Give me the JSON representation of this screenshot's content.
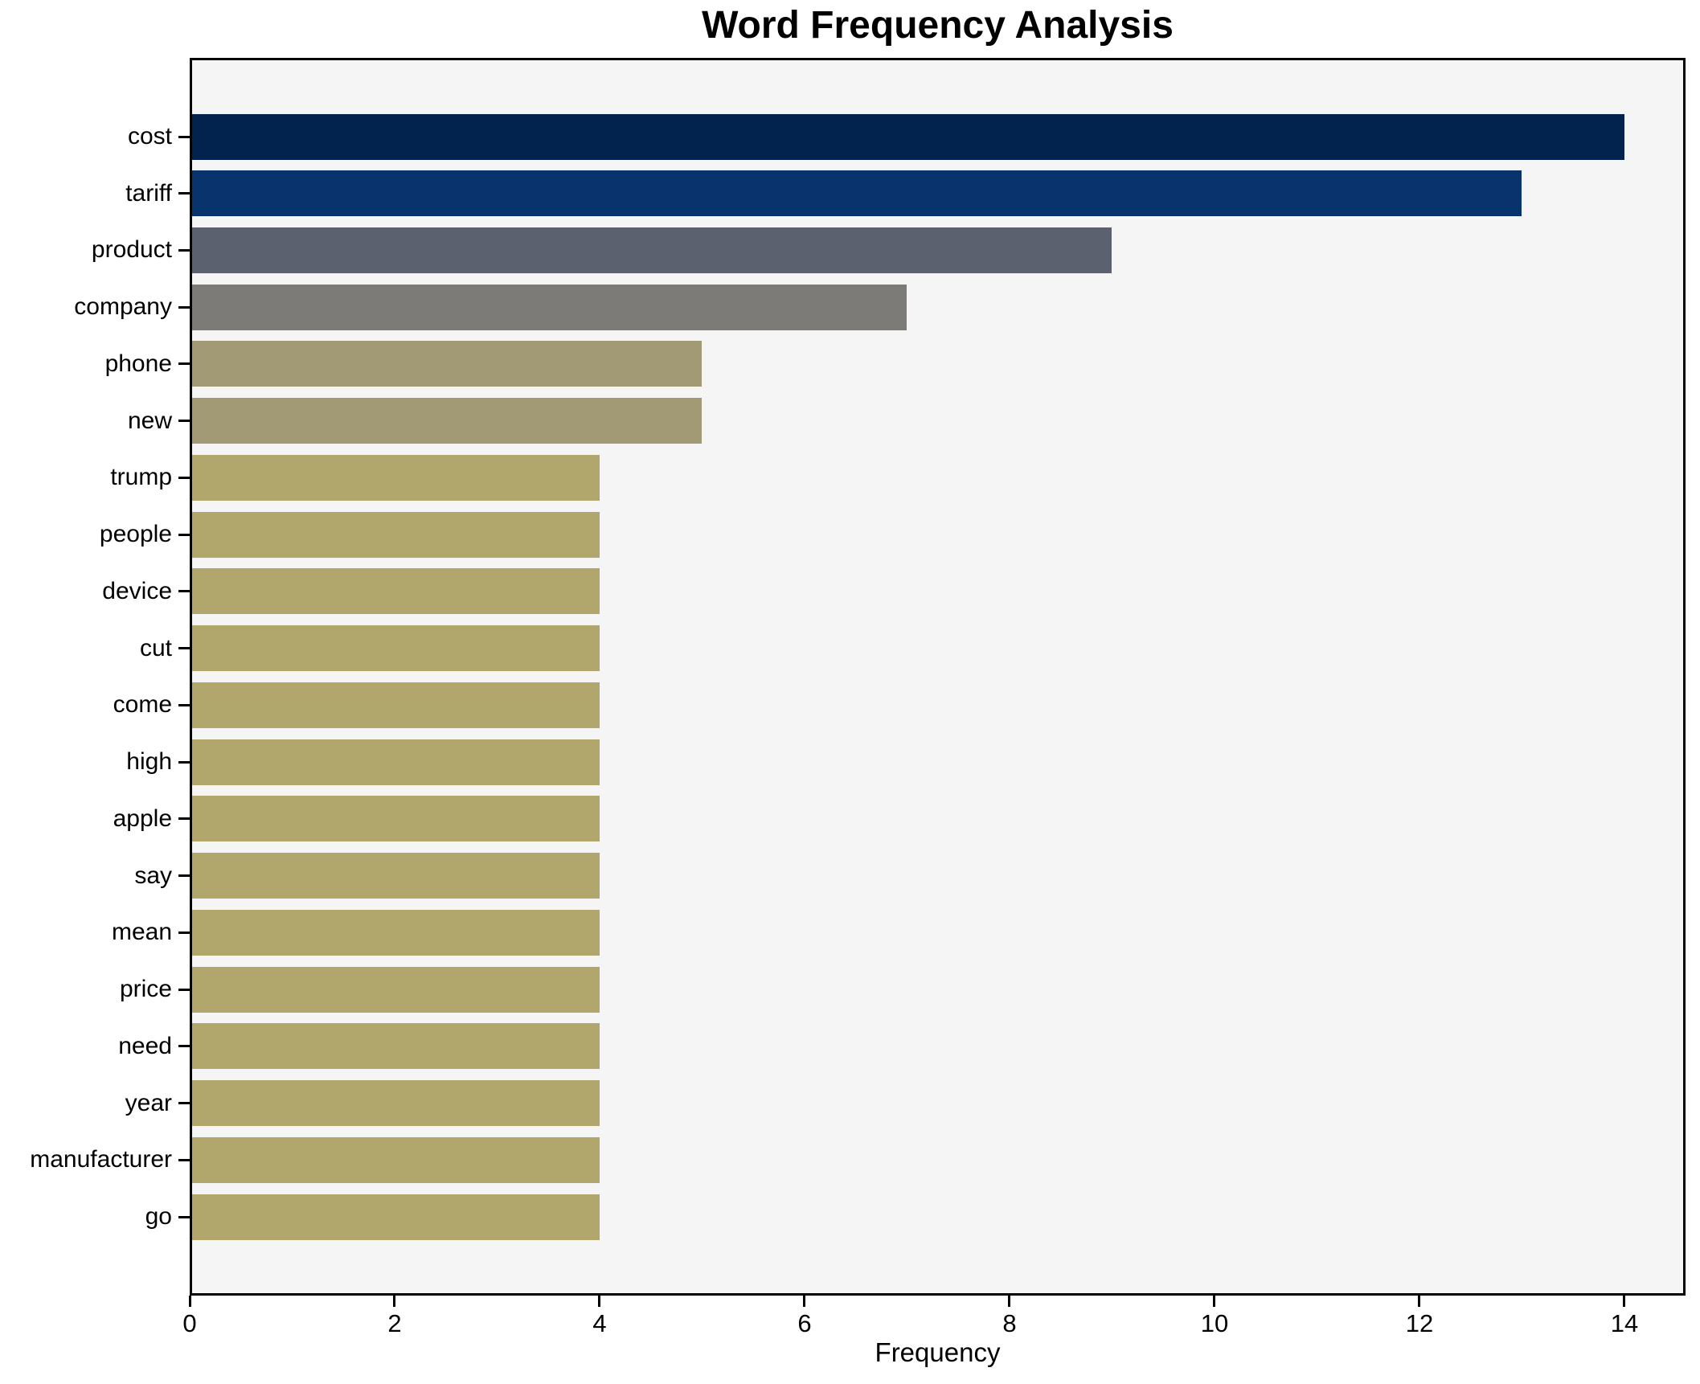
{
  "chart_data": {
    "type": "bar",
    "orientation": "horizontal",
    "title": "Word Frequency Analysis",
    "xlabel": "Frequency",
    "ylabel": "",
    "categories": [
      "cost",
      "tariff",
      "product",
      "company",
      "phone",
      "new",
      "trump",
      "people",
      "device",
      "cut",
      "come",
      "high",
      "apple",
      "say",
      "mean",
      "price",
      "need",
      "year",
      "manufacturer",
      "go"
    ],
    "values": [
      14,
      13,
      9,
      7,
      5,
      5,
      4,
      4,
      4,
      4,
      4,
      4,
      4,
      4,
      4,
      4,
      4,
      4,
      4,
      4
    ],
    "bar_colors": [
      "#02234e",
      "#08336d",
      "#5b616e",
      "#7c7b77",
      "#a29a75",
      "#a29a75",
      "#b1a76c",
      "#b1a76c",
      "#b1a76c",
      "#b1a76c",
      "#b1a76c",
      "#b1a76c",
      "#b1a76c",
      "#b1a76c",
      "#b1a76c",
      "#b1a76c",
      "#b1a76c",
      "#b1a76c",
      "#b1a76c",
      "#b1a76c"
    ],
    "x_ticks": [
      0,
      2,
      4,
      6,
      8,
      10,
      12,
      14
    ],
    "xlim": [
      0,
      14.6
    ],
    "grid": false,
    "legend": null,
    "plot_background": "#f5f5f5",
    "figure_background": "#ffffff",
    "frame_color": "#000000"
  }
}
